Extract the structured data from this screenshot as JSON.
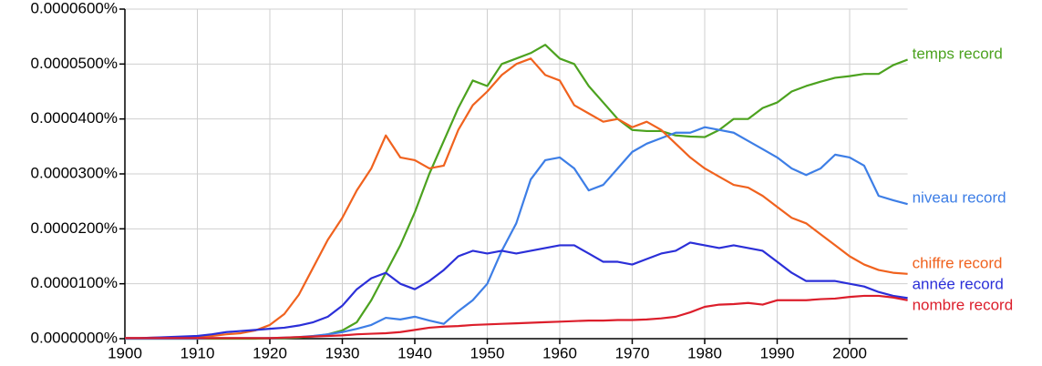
{
  "chart_data": {
    "type": "line",
    "x": [
      1900,
      1902,
      1904,
      1906,
      1908,
      1910,
      1912,
      1914,
      1916,
      1918,
      1920,
      1922,
      1924,
      1926,
      1928,
      1930,
      1932,
      1934,
      1936,
      1938,
      1940,
      1942,
      1944,
      1946,
      1948,
      1950,
      1952,
      1954,
      1956,
      1958,
      1960,
      1962,
      1964,
      1966,
      1968,
      1970,
      1972,
      1974,
      1976,
      1978,
      1980,
      1982,
      1984,
      1986,
      1988,
      1990,
      1992,
      1994,
      1996,
      1998,
      2000,
      2002,
      2004,
      2006,
      2008
    ],
    "series": [
      {
        "name": "temps record",
        "color": "#4ca21f",
        "values": [
          0,
          0,
          0,
          0,
          0,
          0,
          0,
          0,
          0,
          0,
          1e-07,
          1e-07,
          2e-07,
          4e-07,
          8e-07,
          1.5e-06,
          3e-06,
          7e-06,
          1.2e-05,
          1.7e-05,
          2.3e-05,
          3e-05,
          3.6e-05,
          4.2e-05,
          4.7e-05,
          4.6e-05,
          5e-05,
          5.1e-05,
          5.2e-05,
          5.35e-05,
          5.1e-05,
          5e-05,
          4.6e-05,
          4.3e-05,
          4e-05,
          3.8e-05,
          3.78e-05,
          3.78e-05,
          3.7e-05,
          3.68e-05,
          3.67e-05,
          3.8e-05,
          4e-05,
          4e-05,
          4.2e-05,
          4.3e-05,
          4.5e-05,
          4.6e-05,
          4.68e-05,
          4.75e-05,
          4.78e-05,
          4.82e-05,
          4.82e-05,
          4.98e-05,
          5.08e-05
        ]
      },
      {
        "name": "niveau record",
        "color": "#3d7ee6",
        "values": [
          0,
          0,
          0,
          0,
          0,
          0,
          1e-07,
          1e-07,
          1e-07,
          1e-07,
          1e-07,
          2e-07,
          3e-07,
          5e-07,
          8e-07,
          1.2e-06,
          1.8e-06,
          2.5e-06,
          3.8e-06,
          3.5e-06,
          4e-06,
          3.3e-06,
          2.7e-06,
          5e-06,
          7e-06,
          1e-05,
          1.6e-05,
          2.1e-05,
          2.9e-05,
          3.25e-05,
          3.3e-05,
          3.1e-05,
          2.7e-05,
          2.8e-05,
          3.1e-05,
          3.4e-05,
          3.55e-05,
          3.65e-05,
          3.75e-05,
          3.75e-05,
          3.85e-05,
          3.8e-05,
          3.75e-05,
          3.6e-05,
          3.45e-05,
          3.3e-05,
          3.1e-05,
          2.98e-05,
          3.1e-05,
          3.35e-05,
          3.3e-05,
          3.15e-05,
          2.6e-05,
          2.52e-05,
          2.45e-05
        ]
      },
      {
        "name": "chiffre record",
        "color": "#f0621e",
        "values": [
          1e-07,
          1e-07,
          2e-07,
          2e-07,
          3e-07,
          4e-07,
          5e-07,
          8e-07,
          1e-06,
          1.5e-06,
          2.5e-06,
          4.5e-06,
          8e-06,
          1.3e-05,
          1.8e-05,
          2.2e-05,
          2.7e-05,
          3.1e-05,
          3.7e-05,
          3.3e-05,
          3.25e-05,
          3.1e-05,
          3.15e-05,
          3.8e-05,
          4.25e-05,
          4.5e-05,
          4.8e-05,
          5e-05,
          5.1e-05,
          4.8e-05,
          4.7e-05,
          4.25e-05,
          4.1e-05,
          3.95e-05,
          4e-05,
          3.85e-05,
          3.95e-05,
          3.8e-05,
          3.55e-05,
          3.3e-05,
          3.1e-05,
          2.95e-05,
          2.8e-05,
          2.75e-05,
          2.6e-05,
          2.4e-05,
          2.2e-05,
          2.1e-05,
          1.9e-05,
          1.7e-05,
          1.5e-05,
          1.35e-05,
          1.25e-05,
          1.2e-05,
          1.18e-05
        ]
      },
      {
        "name": "année record",
        "color": "#2b2fd8",
        "values": [
          1e-07,
          1e-07,
          2e-07,
          3e-07,
          4e-07,
          5e-07,
          8e-07,
          1.2e-06,
          1.4e-06,
          1.6e-06,
          1.8e-06,
          2e-06,
          2.4e-06,
          3e-06,
          4e-06,
          6e-06,
          9e-06,
          1.1e-05,
          1.2e-05,
          1e-05,
          9e-06,
          1.05e-05,
          1.25e-05,
          1.5e-05,
          1.6e-05,
          1.55e-05,
          1.6e-05,
          1.55e-05,
          1.6e-05,
          1.65e-05,
          1.7e-05,
          1.7e-05,
          1.55e-05,
          1.4e-05,
          1.4e-05,
          1.35e-05,
          1.45e-05,
          1.55e-05,
          1.6e-05,
          1.75e-05,
          1.7e-05,
          1.65e-05,
          1.7e-05,
          1.65e-05,
          1.6e-05,
          1.4e-05,
          1.2e-05,
          1.05e-05,
          1.05e-05,
          1.05e-05,
          1e-05,
          9.5e-06,
          8.5e-06,
          7.8e-06,
          7.4e-06
        ]
      },
      {
        "name": "nombre record",
        "color": "#dc1e2b",
        "values": [
          1e-07,
          1e-07,
          1e-07,
          1e-07,
          1e-07,
          1e-07,
          1e-07,
          1e-07,
          1e-07,
          1e-07,
          1e-07,
          2e-07,
          3e-07,
          4e-07,
          5e-07,
          6e-07,
          8e-07,
          9e-07,
          1e-06,
          1.2e-06,
          1.6e-06,
          2e-06,
          2.2e-06,
          2.3e-06,
          2.5e-06,
          2.6e-06,
          2.7e-06,
          2.8e-06,
          2.9e-06,
          3e-06,
          3.1e-06,
          3.2e-06,
          3.3e-06,
          3.3e-06,
          3.4e-06,
          3.4e-06,
          3.5e-06,
          3.7e-06,
          4e-06,
          4.8e-06,
          5.8e-06,
          6.2e-06,
          6.3e-06,
          6.5e-06,
          6.2e-06,
          7e-06,
          7e-06,
          7e-06,
          7.2e-06,
          7.3e-06,
          7.6e-06,
          7.8e-06,
          7.8e-06,
          7.5e-06,
          7e-06
        ]
      }
    ],
    "xlim": [
      1900,
      2008
    ],
    "xticks": [
      1900,
      1910,
      1920,
      1930,
      1940,
      1950,
      1960,
      1970,
      1980,
      1990,
      2000
    ],
    "ylim": [
      0,
      6e-05
    ],
    "yticks": [
      {
        "value": 0,
        "label": "0.0000000%"
      },
      {
        "value": 1e-05,
        "label": "0.0000100%"
      },
      {
        "value": 2e-05,
        "label": "0.0000200%"
      },
      {
        "value": 3e-05,
        "label": "0.0000300%"
      },
      {
        "value": 4e-05,
        "label": "0.0000400%"
      },
      {
        "value": 5e-05,
        "label": "0.0000500%"
      },
      {
        "value": 6e-05,
        "label": "0.0000600%"
      }
    ],
    "grid": true
  }
}
